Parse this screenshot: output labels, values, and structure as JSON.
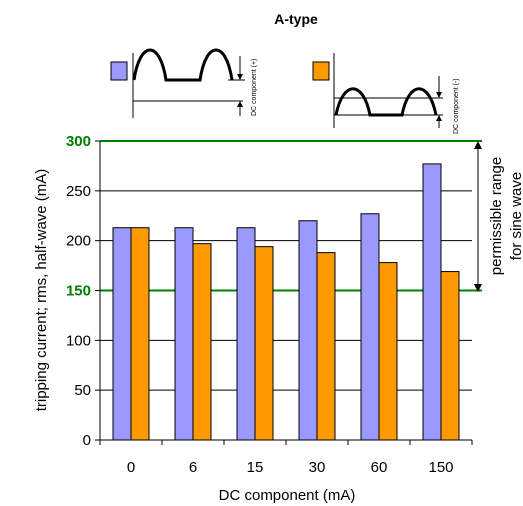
{
  "chart_data": {
    "type": "bar",
    "title": "A-type",
    "xlabel": "DC component (mA)",
    "ylabel": "tripping current; rms, half-wave (mA)",
    "categories": [
      "0",
      "6",
      "15",
      "30",
      "60",
      "150"
    ],
    "series": [
      {
        "values": [
          213,
          213,
          213,
          220,
          227,
          277
        ]
      },
      {
        "values": [
          213,
          197,
          194,
          188,
          178,
          169
        ]
      }
    ],
    "ylim": [
      0,
      300
    ],
    "yticks": [
      0,
      50,
      100,
      150,
      200,
      250,
      300
    ],
    "reference_lines": [
      150,
      300
    ],
    "grid": true,
    "legend_position": "top",
    "legend_waveforms": [
      {
        "description": "half-wave with positive DC offset",
        "annotation": "DC component (+)"
      },
      {
        "description": "half-wave with negative DC offset",
        "annotation": "DC component (-)"
      }
    ],
    "range_annotation": [
      "permissible range",
      "for sine wave"
    ],
    "colors": {
      "series_1": "#9999ff",
      "series_2": "#ff9900",
      "reference": "#008000",
      "grid": "#000000"
    }
  }
}
